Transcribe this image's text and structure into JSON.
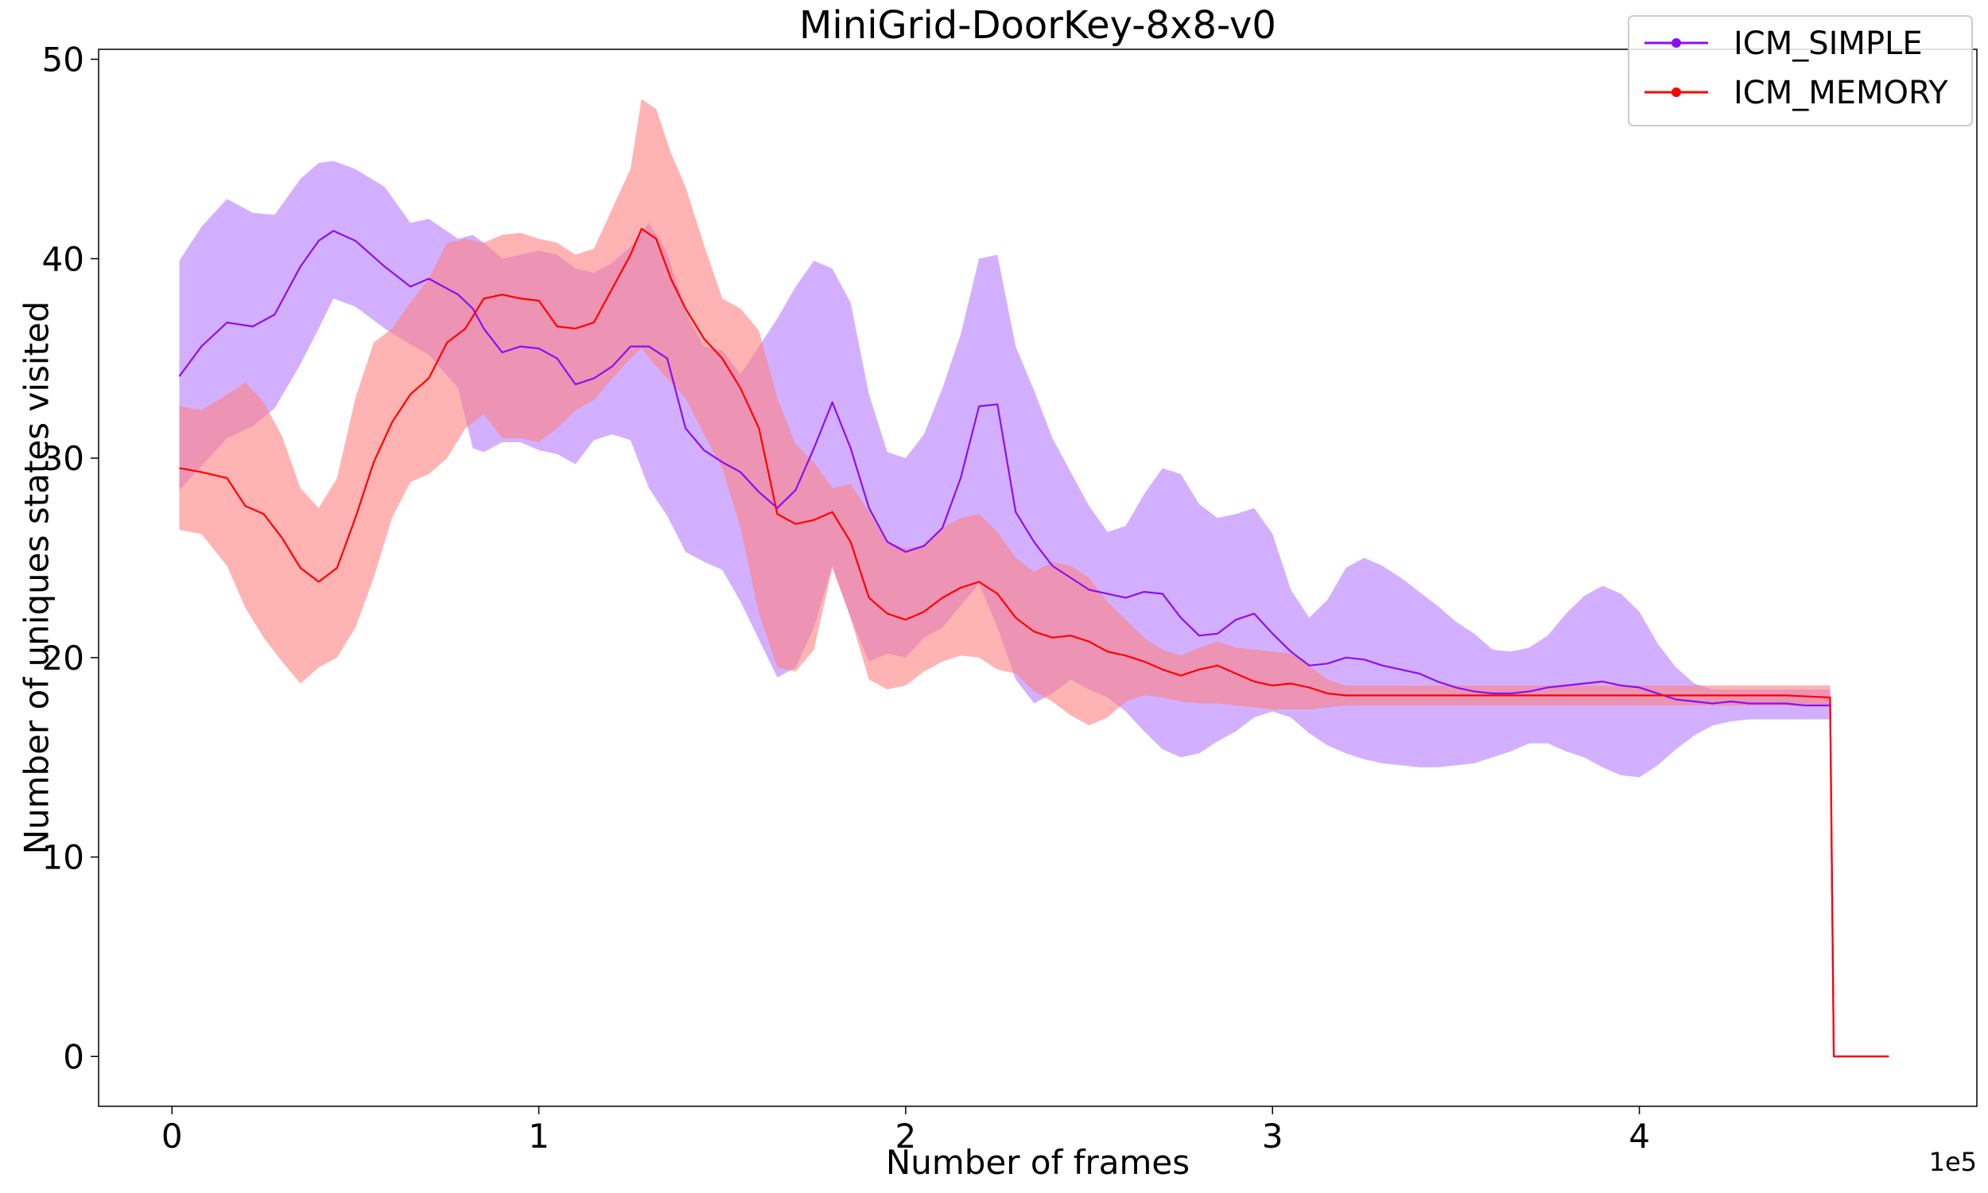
{
  "chart_data": {
    "type": "line",
    "title": "MiniGrid-DoorKey-8x8-v0",
    "xlabel": "Number of frames",
    "ylabel": "Number of uniques states visited",
    "x_offset_label": "1e5",
    "x_scale": 100000,
    "xlim": [
      -0.2,
      4.92
    ],
    "ylim": [
      -2.5,
      50.5
    ],
    "xticks": [
      0,
      1,
      2,
      3,
      4
    ],
    "xtick_labels": [
      "0",
      "1",
      "2",
      "3",
      "4"
    ],
    "yticks": [
      0,
      10,
      20,
      30,
      40,
      50
    ],
    "ytick_labels": [
      "0",
      "10",
      "20",
      "30",
      "40",
      "50"
    ],
    "legend_position": "top-right",
    "series": [
      {
        "name": "ICM_SIMPLE",
        "color": "#8b0ff5",
        "band_color": "#b57cff",
        "x": [
          0.02,
          0.08,
          0.15,
          0.22,
          0.28,
          0.35,
          0.4,
          0.44,
          0.5,
          0.58,
          0.65,
          0.7,
          0.78,
          0.82,
          0.85,
          0.9,
          0.95,
          1.0,
          1.05,
          1.1,
          1.15,
          1.2,
          1.25,
          1.3,
          1.35,
          1.4,
          1.45,
          1.5,
          1.55,
          1.6,
          1.65,
          1.7,
          1.75,
          1.8,
          1.85,
          1.9,
          1.95,
          2.0,
          2.05,
          2.1,
          2.15,
          2.2,
          2.25,
          2.3,
          2.35,
          2.4,
          2.45,
          2.5,
          2.55,
          2.6,
          2.65,
          2.7,
          2.75,
          2.8,
          2.85,
          2.9,
          2.95,
          3.0,
          3.05,
          3.1,
          3.15,
          3.2,
          3.25,
          3.3,
          3.35,
          3.4,
          3.45,
          3.5,
          3.55,
          3.6,
          3.65,
          3.7,
          3.75,
          3.8,
          3.85,
          3.9,
          3.95,
          4.0,
          4.05,
          4.1,
          4.15,
          4.2,
          4.25,
          4.3,
          4.35,
          4.4,
          4.45,
          4.52,
          4.53,
          4.58,
          4.68
        ],
        "y": [
          34.1,
          35.6,
          36.8,
          36.6,
          37.2,
          39.6,
          40.9,
          41.4,
          40.9,
          39.6,
          38.6,
          39.0,
          38.2,
          37.5,
          36.5,
          35.3,
          35.6,
          35.5,
          35.0,
          33.7,
          34.0,
          34.6,
          35.6,
          35.6,
          35.0,
          31.5,
          30.4,
          29.8,
          29.3,
          28.3,
          27.5,
          28.4,
          30.5,
          32.8,
          30.5,
          27.5,
          25.8,
          25.3,
          25.6,
          26.5,
          29.0,
          32.6,
          32.7,
          27.3,
          25.8,
          24.6,
          24.0,
          23.4,
          23.2,
          23.0,
          23.3,
          23.2,
          22.0,
          21.1,
          21.2,
          21.9,
          22.2,
          21.2,
          20.3,
          19.6,
          19.7,
          20.0,
          19.9,
          19.6,
          19.4,
          19.2,
          18.8,
          18.5,
          18.3,
          18.2,
          18.2,
          18.3,
          18.5,
          18.6,
          18.7,
          18.8,
          18.6,
          18.5,
          18.2,
          17.9,
          17.8,
          17.7,
          17.8,
          17.7,
          17.7,
          17.7,
          17.6,
          17.6,
          0.0,
          0.0,
          0.0
        ],
        "lower": [
          28.4,
          29.6,
          31.0,
          31.6,
          32.5,
          34.7,
          36.5,
          38.0,
          37.6,
          36.5,
          35.7,
          35.2,
          33.5,
          30.5,
          30.3,
          30.8,
          30.8,
          30.4,
          30.2,
          29.7,
          30.9,
          31.2,
          30.9,
          28.5,
          27.1,
          25.3,
          24.8,
          24.4,
          22.8,
          20.9,
          19.0,
          19.5,
          21.5,
          24.6,
          22.0,
          19.8,
          20.2,
          20.0,
          21.0,
          21.5,
          22.6,
          23.7,
          21.5,
          18.9,
          17.7,
          18.2,
          18.9,
          18.4,
          18.0,
          17.3,
          16.3,
          15.4,
          15.0,
          15.2,
          15.8,
          16.3,
          17.0,
          17.3,
          17.0,
          16.2,
          15.6,
          15.2,
          14.9,
          14.7,
          14.6,
          14.5,
          14.5,
          14.6,
          14.7,
          15.0,
          15.3,
          15.7,
          15.7,
          15.3,
          15.0,
          14.5,
          14.1,
          14.0,
          14.6,
          15.4,
          16.1,
          16.6,
          16.8,
          16.9,
          16.9,
          16.9,
          16.9,
          16.9,
          0.0,
          0.0,
          0.0
        ],
        "upper": [
          39.9,
          41.6,
          43.0,
          42.3,
          42.2,
          44.0,
          44.8,
          44.9,
          44.5,
          43.6,
          41.8,
          42.0,
          41.0,
          41.2,
          40.8,
          40.0,
          40.2,
          40.4,
          40.2,
          39.5,
          39.3,
          39.8,
          40.6,
          41.8,
          40.3,
          37.3,
          35.6,
          35.4,
          34.2,
          35.6,
          37.0,
          38.6,
          39.9,
          39.5,
          37.8,
          33.2,
          30.3,
          30.0,
          31.2,
          33.5,
          36.2,
          40.0,
          40.2,
          35.6,
          33.4,
          31.0,
          29.3,
          27.6,
          26.3,
          26.6,
          28.2,
          29.5,
          29.2,
          27.7,
          27.0,
          27.2,
          27.5,
          26.2,
          23.4,
          22.0,
          22.9,
          24.5,
          25.0,
          24.6,
          24.0,
          23.3,
          22.6,
          21.8,
          21.2,
          20.4,
          20.3,
          20.5,
          21.1,
          22.2,
          23.1,
          23.6,
          23.2,
          22.3,
          20.7,
          19.5,
          18.7,
          18.4,
          18.4,
          18.4,
          18.4,
          18.4,
          18.4,
          18.4,
          0.0,
          0.0,
          0.0
        ]
      },
      {
        "name": "ICM_MEMORY",
        "color": "#ff0000",
        "band_color": "#ff8080",
        "x": [
          0.02,
          0.08,
          0.15,
          0.2,
          0.25,
          0.3,
          0.35,
          0.4,
          0.45,
          0.5,
          0.55,
          0.6,
          0.65,
          0.7,
          0.75,
          0.8,
          0.85,
          0.9,
          0.95,
          1.0,
          1.05,
          1.1,
          1.15,
          1.2,
          1.25,
          1.28,
          1.32,
          1.36,
          1.4,
          1.45,
          1.5,
          1.55,
          1.6,
          1.65,
          1.7,
          1.75,
          1.8,
          1.85,
          1.9,
          1.95,
          2.0,
          2.05,
          2.1,
          2.15,
          2.2,
          2.25,
          2.3,
          2.35,
          2.4,
          2.45,
          2.5,
          2.55,
          2.6,
          2.65,
          2.7,
          2.75,
          2.8,
          2.85,
          2.9,
          2.95,
          3.0,
          3.05,
          3.1,
          3.15,
          3.2,
          3.3,
          3.4,
          3.5,
          3.6,
          3.7,
          3.8,
          3.9,
          4.0,
          4.1,
          4.2,
          4.3,
          4.4,
          4.52,
          4.53,
          4.6,
          4.68
        ],
        "y": [
          29.5,
          29.3,
          29.0,
          27.6,
          27.2,
          26.0,
          24.5,
          23.8,
          24.5,
          27.0,
          29.8,
          31.8,
          33.2,
          34.0,
          35.8,
          36.5,
          38.0,
          38.2,
          38.0,
          37.9,
          36.6,
          36.5,
          36.8,
          38.5,
          40.2,
          41.5,
          41.0,
          39.0,
          37.5,
          36.0,
          35.0,
          33.5,
          31.5,
          27.2,
          26.7,
          26.9,
          27.3,
          25.8,
          23.0,
          22.2,
          21.9,
          22.3,
          23.0,
          23.5,
          23.8,
          23.2,
          22.0,
          21.3,
          21.0,
          21.1,
          20.8,
          20.3,
          20.1,
          19.8,
          19.4,
          19.1,
          19.4,
          19.6,
          19.2,
          18.8,
          18.6,
          18.7,
          18.5,
          18.2,
          18.1,
          18.1,
          18.1,
          18.1,
          18.1,
          18.1,
          18.1,
          18.1,
          18.1,
          18.1,
          18.1,
          18.1,
          18.1,
          18.0,
          0.0,
          0.0,
          0.0
        ],
        "lower": [
          26.4,
          26.2,
          24.6,
          22.5,
          21.0,
          19.8,
          18.7,
          19.5,
          20.0,
          21.5,
          24.0,
          27.0,
          28.8,
          29.2,
          30.0,
          31.5,
          32.2,
          31.0,
          31.0,
          30.8,
          31.5,
          32.4,
          32.9,
          34.0,
          35.0,
          35.5,
          34.6,
          33.8,
          33.0,
          31.2,
          29.5,
          26.5,
          22.2,
          19.5,
          19.3,
          20.4,
          24.5,
          22.0,
          18.9,
          18.4,
          18.6,
          19.3,
          19.8,
          20.1,
          20.0,
          19.4,
          19.2,
          18.3,
          17.8,
          17.1,
          16.6,
          17.0,
          17.8,
          18.1,
          18.0,
          17.8,
          17.7,
          17.7,
          17.6,
          17.5,
          17.4,
          17.4,
          17.4,
          17.5,
          17.6,
          17.6,
          17.6,
          17.6,
          17.6,
          17.6,
          17.6,
          17.6,
          17.6,
          17.6,
          17.6,
          17.6,
          17.6,
          17.6,
          0.0,
          0.0,
          0.0
        ],
        "upper": [
          32.6,
          32.4,
          33.2,
          33.8,
          32.8,
          31.1,
          28.5,
          27.5,
          29.0,
          33.0,
          35.8,
          36.5,
          37.8,
          39.0,
          40.8,
          41.0,
          40.8,
          41.2,
          41.3,
          41.0,
          40.8,
          40.2,
          40.5,
          42.5,
          44.5,
          48.0,
          47.5,
          45.3,
          43.6,
          40.7,
          38.0,
          37.5,
          36.4,
          33.0,
          30.7,
          29.8,
          28.5,
          28.7,
          27.3,
          25.7,
          25.5,
          25.6,
          26.5,
          27.0,
          27.2,
          26.3,
          25.0,
          24.3,
          24.8,
          24.6,
          24.0,
          22.8,
          21.9,
          21.0,
          20.4,
          20.1,
          20.5,
          20.8,
          20.5,
          20.4,
          20.3,
          20.2,
          19.6,
          18.9,
          18.6,
          18.6,
          18.6,
          18.6,
          18.6,
          18.6,
          18.6,
          18.6,
          18.6,
          18.6,
          18.6,
          18.6,
          18.6,
          18.6,
          0.0,
          0.0,
          0.0
        ]
      }
    ]
  }
}
